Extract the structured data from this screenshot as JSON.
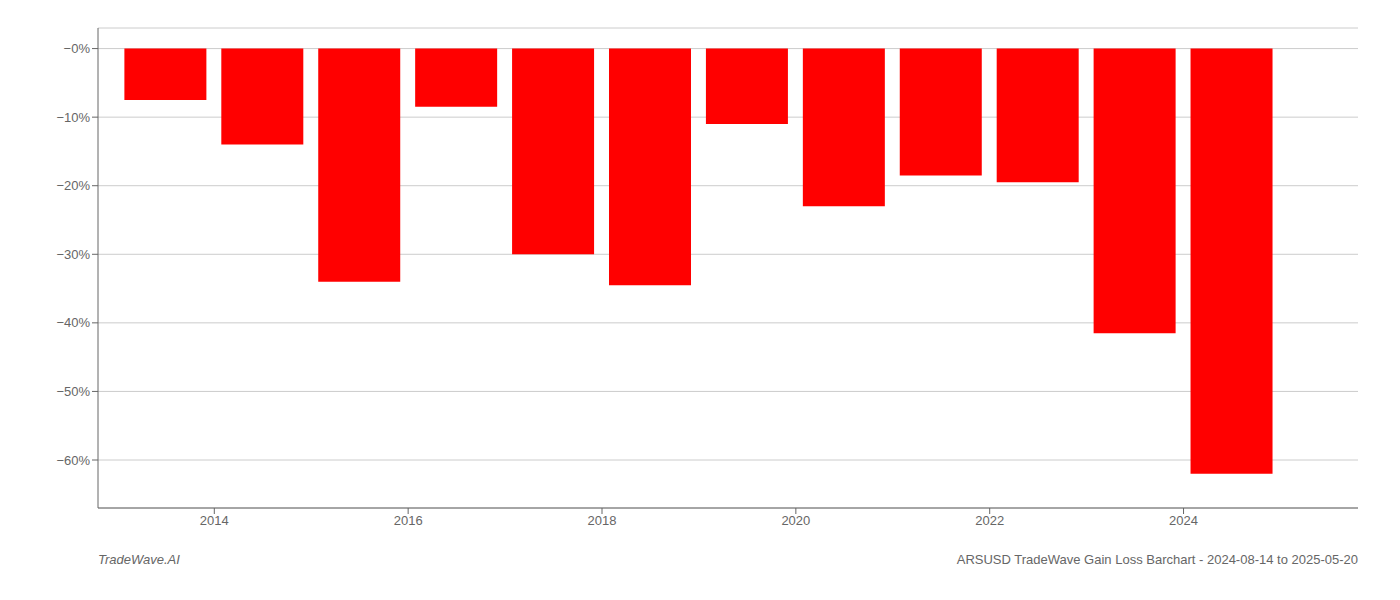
{
  "chart_data": {
    "type": "bar",
    "x": [
      2013.5,
      2014.5,
      2015.5,
      2016.5,
      2017.5,
      2018.5,
      2019.5,
      2020.5,
      2021.5,
      2022.5,
      2023.5,
      2024.5
    ],
    "values": [
      -7.5,
      -14.0,
      -34.0,
      -8.5,
      -30.0,
      -34.5,
      -11.0,
      -23.0,
      -18.5,
      -19.5,
      -41.5,
      -62.0
    ],
    "color": "#ff0000",
    "xlim": [
      2012.8,
      2025.8
    ],
    "xticks": [
      2014,
      2016,
      2018,
      2020,
      2022,
      2024
    ],
    "ylim": [
      -67,
      3
    ],
    "yticks": [
      {
        "value": 0,
        "label": "−0%"
      },
      {
        "value": -10,
        "label": "−10%"
      },
      {
        "value": -20,
        "label": "−20%"
      },
      {
        "value": -30,
        "label": "−30%"
      },
      {
        "value": -40,
        "label": "−40%"
      },
      {
        "value": -50,
        "label": "−50%"
      },
      {
        "value": -60,
        "label": "−60%"
      }
    ],
    "grid": true,
    "annotations": [
      "TradeWave.AI",
      "ARSUSD TradeWave Gain Loss Barchart - 2024-08-14 to 2025-05-20"
    ]
  }
}
